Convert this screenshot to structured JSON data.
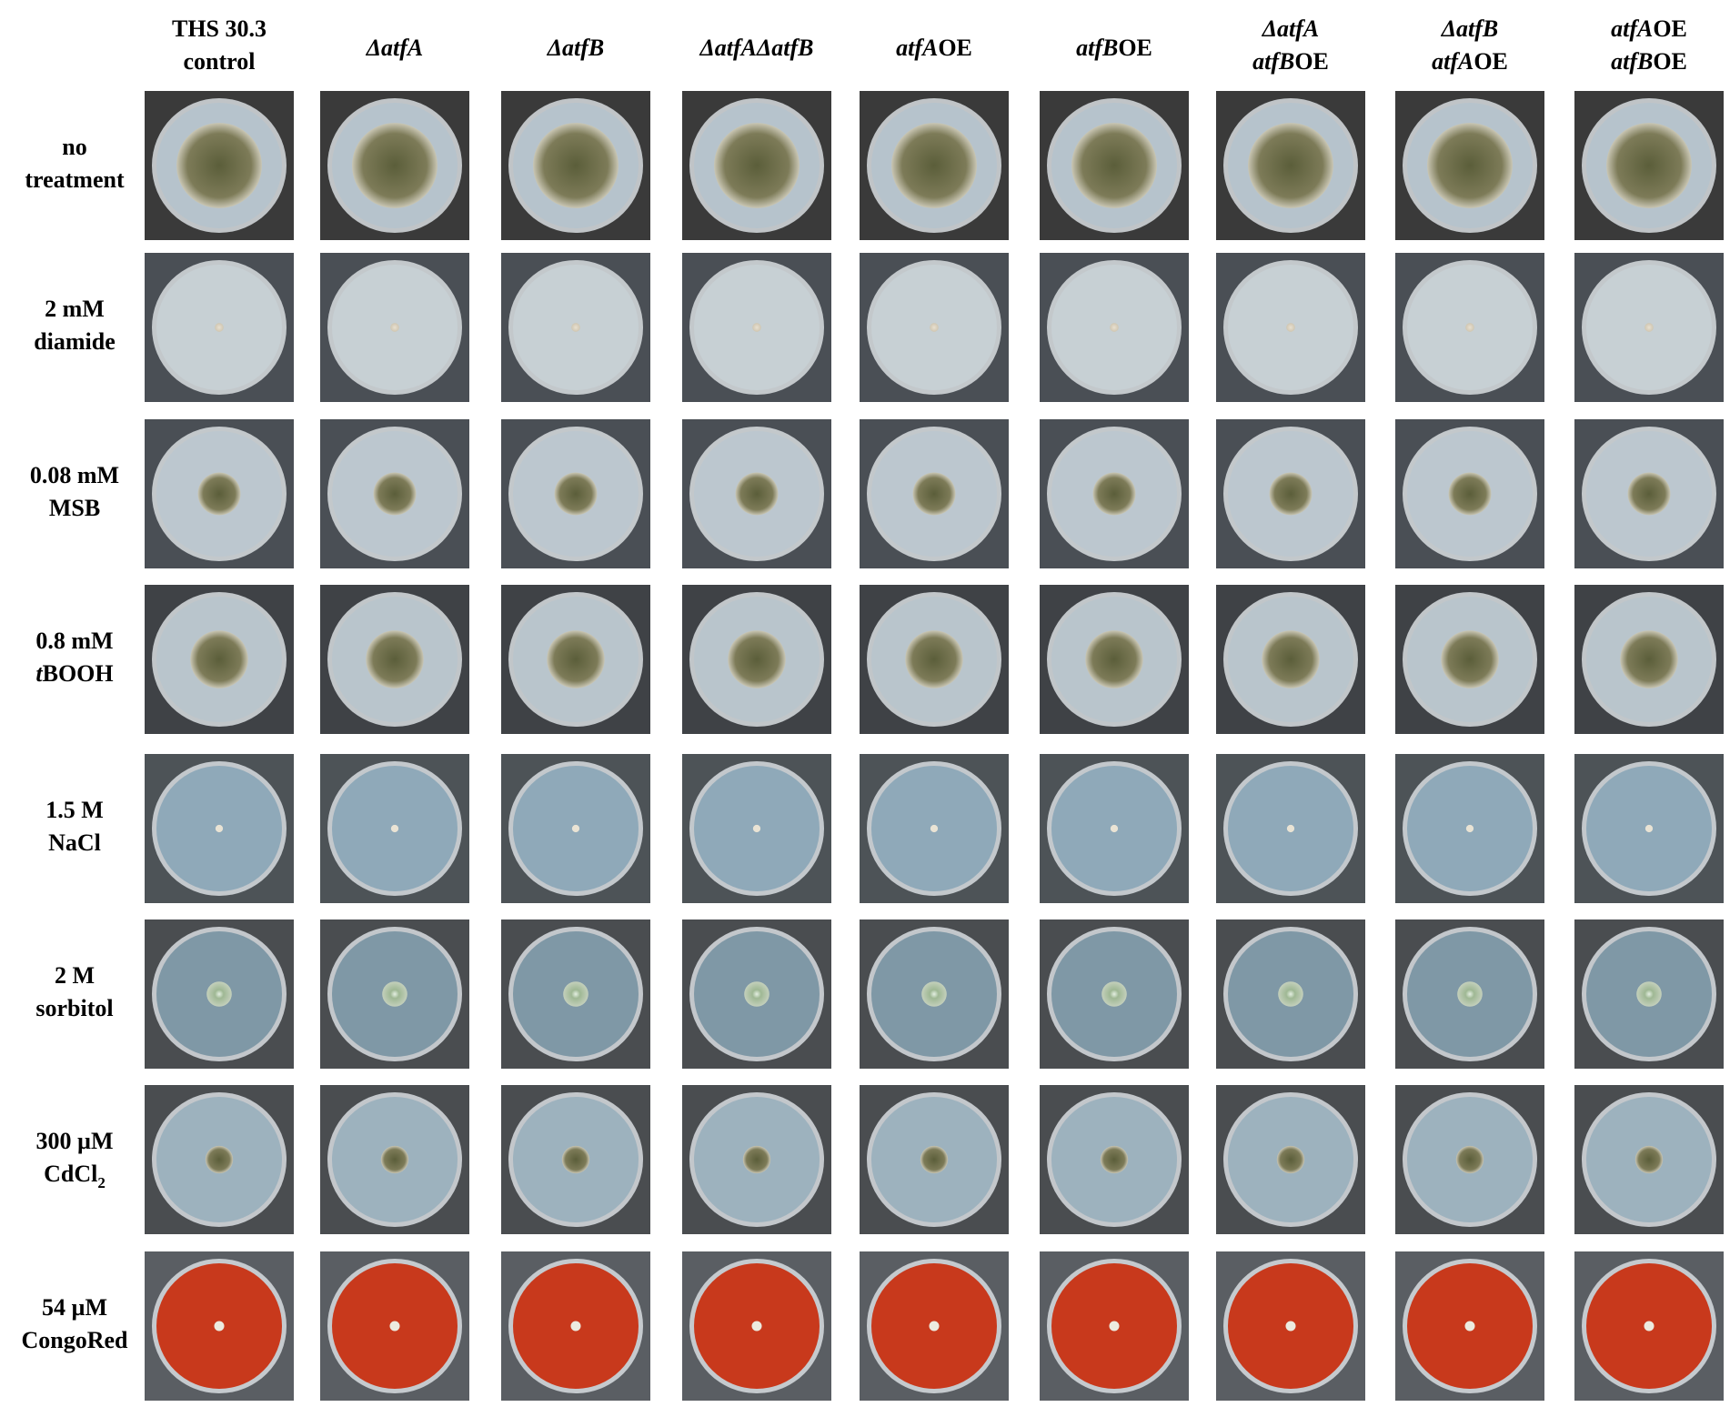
{
  "columns": [
    {
      "lines": [
        [
          {
            "text": "THS 30.3"
          }
        ],
        [
          {
            "text": "control"
          }
        ]
      ]
    },
    {
      "lines": [
        [
          {
            "text": "ΔatfA",
            "italic": true
          }
        ]
      ]
    },
    {
      "lines": [
        [
          {
            "text": "ΔatfB",
            "italic": true
          }
        ]
      ]
    },
    {
      "lines": [
        [
          {
            "text": "ΔatfAΔatfB",
            "italic": true
          }
        ]
      ]
    },
    {
      "lines": [
        [
          {
            "text": "atfA",
            "italic": true
          },
          {
            "text": "OE"
          }
        ]
      ]
    },
    {
      "lines": [
        [
          {
            "text": "atfB",
            "italic": true
          },
          {
            "text": "OE"
          }
        ]
      ]
    },
    {
      "lines": [
        [
          {
            "text": "ΔatfA",
            "italic": true
          }
        ],
        [
          {
            "text": "atfB",
            "italic": true
          },
          {
            "text": "OE"
          }
        ]
      ]
    },
    {
      "lines": [
        [
          {
            "text": "ΔatfB",
            "italic": true
          }
        ],
        [
          {
            "text": "atfA",
            "italic": true
          },
          {
            "text": "OE"
          }
        ]
      ]
    },
    {
      "lines": [
        [
          {
            "text": "atfA",
            "italic": true
          },
          {
            "text": "OE"
          }
        ],
        [
          {
            "text": "atfB",
            "italic": true
          },
          {
            "text": "OE"
          }
        ]
      ]
    }
  ],
  "rows": [
    {
      "lines": [
        [
          {
            "text": "no"
          }
        ],
        [
          {
            "text": "treatment"
          }
        ]
      ]
    },
    {
      "lines": [
        [
          {
            "text": "2 mM"
          }
        ],
        [
          {
            "text": "diamide"
          }
        ]
      ]
    },
    {
      "lines": [
        [
          {
            "text": "0.08 mM"
          }
        ],
        [
          {
            "text": "MSB"
          }
        ]
      ]
    },
    {
      "lines": [
        [
          {
            "text": "0.8 mM"
          }
        ],
        [
          {
            "text": "t",
            "italic": true
          },
          {
            "text": "BOOH"
          }
        ]
      ]
    },
    {
      "lines": [
        [
          {
            "text": "1.5 M"
          }
        ],
        [
          {
            "text": "NaCl"
          }
        ]
      ]
    },
    {
      "lines": [
        [
          {
            "text": "2 M"
          }
        ],
        [
          {
            "text": "sorbitol"
          }
        ]
      ]
    },
    {
      "lines": [
        [
          {
            "text": "300 µM"
          }
        ],
        [
          {
            "text": "CdCl"
          },
          {
            "text": "2",
            "sub": true
          }
        ]
      ]
    },
    {
      "lines": [
        [
          {
            "text": "54 µM"
          }
        ],
        [
          {
            "text": "CongoRed"
          }
        ]
      ]
    }
  ]
}
